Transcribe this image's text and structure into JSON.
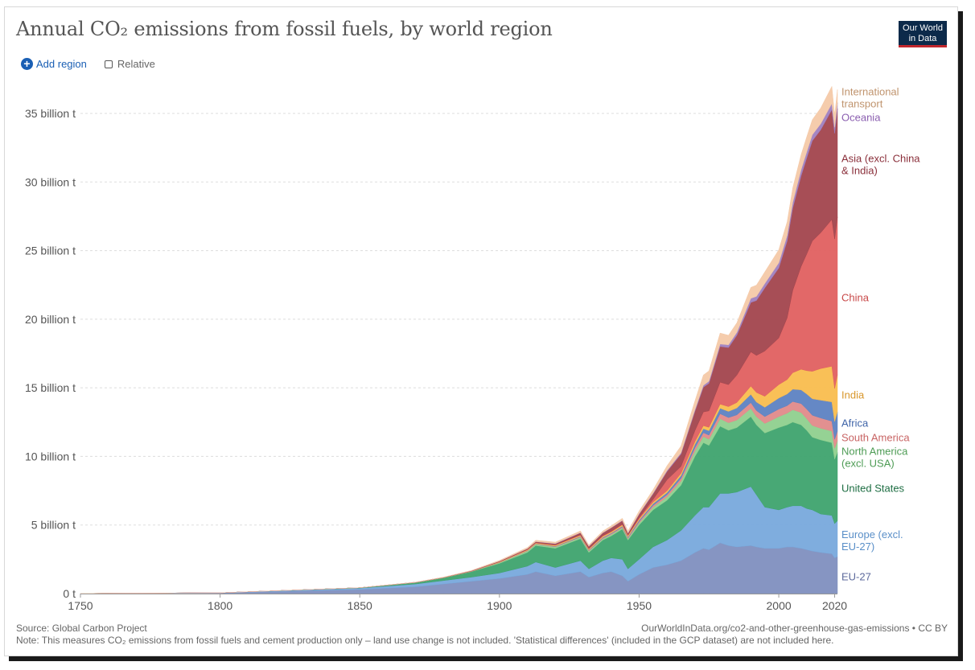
{
  "title": "Annual CO₂ emissions from fossil fuels, by world region",
  "logo": {
    "line1": "Our World",
    "line2": "in Data"
  },
  "controls": {
    "add_region": "Add region",
    "relative": "Relative"
  },
  "footer": {
    "source": "Source: Global Carbon Project",
    "url": "OurWorldInData.org/co2-and-other-greenhouse-gas-emissions • CC BY",
    "note": "Note: This measures CO₂ emissions from fossil fuels and cement production only – land use change is not included. 'Statistical differences' (included in the GCP dataset) are not included here."
  },
  "chart_data": {
    "type": "area",
    "stacked": true,
    "title": "Annual CO₂ emissions from fossil fuels, by world region",
    "x_range": [
      1750,
      2021
    ],
    "ylim": [
      0,
      36.7
    ],
    "x_ticks": [
      "1750",
      "1800",
      "1850",
      "1900",
      "1950",
      "2000",
      "2020"
    ],
    "x_tick_values": [
      1750,
      1800,
      1850,
      1900,
      1950,
      2000,
      2020
    ],
    "y_ticks": [
      "0 t",
      "5 billion t",
      "10 billion t",
      "15 billion t",
      "20 billion t",
      "25 billion t",
      "30 billion t",
      "35 billion t"
    ],
    "y_tick_values": [
      0,
      5,
      10,
      15,
      20,
      25,
      30,
      35
    ],
    "grid": "horizontal dashed",
    "x": [
      1750,
      1800,
      1850,
      1870,
      1880,
      1890,
      1900,
      1910,
      1913,
      1920,
      1929,
      1932,
      1937,
      1940,
      1944,
      1946,
      1950,
      1955,
      1960,
      1965,
      1970,
      1973,
      1975,
      1979,
      1982,
      1985,
      1990,
      1992,
      1995,
      2000,
      2003,
      2005,
      2008,
      2010,
      2012,
      2015,
      2019,
      2020,
      2021
    ],
    "series": [
      {
        "name": "EU-27",
        "color": "#7f8fbf",
        "values": [
          0.01,
          0.05,
          0.3,
          0.5,
          0.7,
          0.9,
          1.1,
          1.4,
          1.6,
          1.3,
          1.6,
          1.2,
          1.5,
          1.6,
          1.3,
          0.9,
          1.4,
          1.9,
          2.1,
          2.4,
          3.0,
          3.3,
          3.2,
          3.7,
          3.5,
          3.4,
          3.5,
          3.4,
          3.3,
          3.3,
          3.4,
          3.4,
          3.3,
          3.2,
          3.1,
          3.0,
          2.9,
          2.6,
          2.7
        ]
      },
      {
        "name": "Europe (excl. EU-27)",
        "color": "#78a9dc",
        "values": [
          0.0,
          0.01,
          0.1,
          0.2,
          0.25,
          0.3,
          0.4,
          0.6,
          0.7,
          0.6,
          0.8,
          0.6,
          0.9,
          1.0,
          1.2,
          0.9,
          1.1,
          1.5,
          1.8,
          2.2,
          2.7,
          3.0,
          3.1,
          3.6,
          3.8,
          4.0,
          4.3,
          3.8,
          3.0,
          2.8,
          2.9,
          3.0,
          3.1,
          3.0,
          3.0,
          2.8,
          2.8,
          2.5,
          2.6
        ]
      },
      {
        "name": "United States",
        "color": "#3ea36e",
        "values": [
          0.0,
          0.0,
          0.03,
          0.1,
          0.2,
          0.4,
          0.7,
          1.0,
          1.2,
          1.4,
          1.6,
          1.2,
          1.5,
          1.6,
          2.2,
          2.1,
          2.5,
          2.7,
          2.9,
          3.3,
          4.3,
          4.7,
          4.5,
          4.9,
          4.6,
          4.7,
          5.1,
          5.1,
          5.4,
          6.0,
          6.0,
          6.1,
          5.9,
          5.7,
          5.3,
          5.4,
          5.3,
          4.7,
          5.0
        ]
      },
      {
        "name": "North America (excl. USA)",
        "color": "#8fd08e",
        "values": [
          0.0,
          0.0,
          0.0,
          0.01,
          0.01,
          0.02,
          0.05,
          0.1,
          0.1,
          0.1,
          0.1,
          0.1,
          0.1,
          0.1,
          0.1,
          0.1,
          0.15,
          0.2,
          0.25,
          0.3,
          0.4,
          0.45,
          0.45,
          0.55,
          0.55,
          0.55,
          0.6,
          0.6,
          0.7,
          0.8,
          0.85,
          0.9,
          0.9,
          0.85,
          0.85,
          0.85,
          0.85,
          0.8,
          0.85
        ]
      },
      {
        "name": "South America",
        "color": "#e08a8a",
        "values": [
          0.0,
          0.0,
          0.0,
          0.0,
          0.0,
          0.0,
          0.01,
          0.02,
          0.02,
          0.03,
          0.04,
          0.04,
          0.05,
          0.06,
          0.06,
          0.07,
          0.1,
          0.13,
          0.16,
          0.2,
          0.24,
          0.28,
          0.3,
          0.36,
          0.38,
          0.38,
          0.42,
          0.44,
          0.5,
          0.55,
          0.55,
          0.6,
          0.65,
          0.7,
          0.75,
          0.75,
          0.72,
          0.65,
          0.7
        ]
      },
      {
        "name": "Africa",
        "color": "#5d82c2",
        "values": [
          0.0,
          0.0,
          0.0,
          0.0,
          0.0,
          0.0,
          0.01,
          0.02,
          0.02,
          0.03,
          0.04,
          0.04,
          0.05,
          0.05,
          0.06,
          0.06,
          0.1,
          0.12,
          0.15,
          0.2,
          0.25,
          0.29,
          0.32,
          0.4,
          0.45,
          0.5,
          0.6,
          0.62,
          0.68,
          0.8,
          0.85,
          0.9,
          1.0,
          1.1,
          1.2,
          1.3,
          1.4,
          1.3,
          1.4
        ]
      },
      {
        "name": "India",
        "color": "#f9bd4e",
        "values": [
          0.0,
          0.0,
          0.0,
          0.01,
          0.02,
          0.02,
          0.04,
          0.05,
          0.05,
          0.06,
          0.07,
          0.07,
          0.08,
          0.08,
          0.09,
          0.09,
          0.1,
          0.12,
          0.14,
          0.17,
          0.2,
          0.22,
          0.25,
          0.3,
          0.35,
          0.4,
          0.6,
          0.7,
          0.8,
          0.98,
          1.05,
          1.2,
          1.5,
          1.7,
          2.0,
          2.3,
          2.6,
          2.4,
          2.7
        ]
      },
      {
        "name": "China",
        "color": "#e06060",
        "values": [
          0.0,
          0.0,
          0.0,
          0.0,
          0.0,
          0.0,
          0.01,
          0.02,
          0.02,
          0.03,
          0.03,
          0.03,
          0.04,
          0.05,
          0.05,
          0.05,
          0.08,
          0.2,
          0.8,
          0.5,
          0.8,
          1.0,
          1.2,
          1.6,
          1.6,
          2.0,
          2.5,
          2.7,
          3.3,
          3.4,
          4.5,
          6.0,
          7.5,
          8.5,
          9.5,
          9.9,
          10.7,
          10.9,
          11.5
        ]
      },
      {
        "name": "Asia (excl. China & India)",
        "color": "#a2444d",
        "values": [
          0.0,
          0.0,
          0.0,
          0.01,
          0.01,
          0.02,
          0.04,
          0.06,
          0.07,
          0.08,
          0.15,
          0.15,
          0.2,
          0.25,
          0.25,
          0.12,
          0.25,
          0.4,
          0.6,
          0.9,
          1.4,
          1.8,
          2.0,
          2.6,
          2.7,
          2.9,
          3.6,
          4.0,
          4.6,
          5.1,
          5.6,
          6.0,
          6.6,
          7.0,
          7.3,
          7.5,
          8.0,
          7.7,
          7.9
        ]
      },
      {
        "name": "Oceania",
        "color": "#9f7fc0",
        "values": [
          0.0,
          0.0,
          0.0,
          0.0,
          0.0,
          0.01,
          0.01,
          0.01,
          0.01,
          0.02,
          0.02,
          0.02,
          0.02,
          0.02,
          0.03,
          0.03,
          0.04,
          0.05,
          0.07,
          0.09,
          0.12,
          0.14,
          0.16,
          0.18,
          0.2,
          0.21,
          0.3,
          0.3,
          0.32,
          0.38,
          0.4,
          0.42,
          0.45,
          0.44,
          0.44,
          0.44,
          0.45,
          0.44,
          0.44
        ]
      },
      {
        "name": "International transport",
        "color": "#f4c9a8",
        "values": [
          0.0,
          0.0,
          0.0,
          0.0,
          0.01,
          0.02,
          0.05,
          0.08,
          0.1,
          0.1,
          0.12,
          0.1,
          0.12,
          0.13,
          0.15,
          0.15,
          0.2,
          0.25,
          0.35,
          0.5,
          0.65,
          0.75,
          0.75,
          0.8,
          0.7,
          0.7,
          0.8,
          0.82,
          0.85,
          0.95,
          1.0,
          1.05,
          1.1,
          1.1,
          1.1,
          1.15,
          1.25,
          0.9,
          0.95
        ]
      }
    ],
    "labels": [
      {
        "series": "International transport",
        "lines": [
          "International",
          "transport"
        ],
        "color": "#c0946e"
      },
      {
        "series": "Oceania",
        "lines": [
          "Oceania"
        ],
        "color": "#8b5fb0"
      },
      {
        "series": "Asia (excl. China & India)",
        "lines": [
          "Asia (excl. China",
          "& India)"
        ],
        "color": "#8a2f3a"
      },
      {
        "series": "China",
        "lines": [
          "China"
        ],
        "color": "#c84848"
      },
      {
        "series": "India",
        "lines": [
          "India"
        ],
        "color": "#d8962a"
      },
      {
        "series": "Africa",
        "lines": [
          "Africa"
        ],
        "color": "#3f64a8"
      },
      {
        "series": "South America",
        "lines": [
          "South America"
        ],
        "color": "#c86464"
      },
      {
        "series": "North America (excl. USA)",
        "lines": [
          "North America",
          "(excl. USA)"
        ],
        "color": "#4e9c55"
      },
      {
        "series": "United States",
        "lines": [
          "United States"
        ],
        "color": "#1e6e43"
      },
      {
        "series": "Europe (excl. EU-27)",
        "lines": [
          "Europe (excl.",
          "EU-27)"
        ],
        "color": "#5a8fc8"
      },
      {
        "series": "EU-27",
        "lines": [
          "EU-27"
        ],
        "color": "#5d6a9c"
      }
    ]
  }
}
